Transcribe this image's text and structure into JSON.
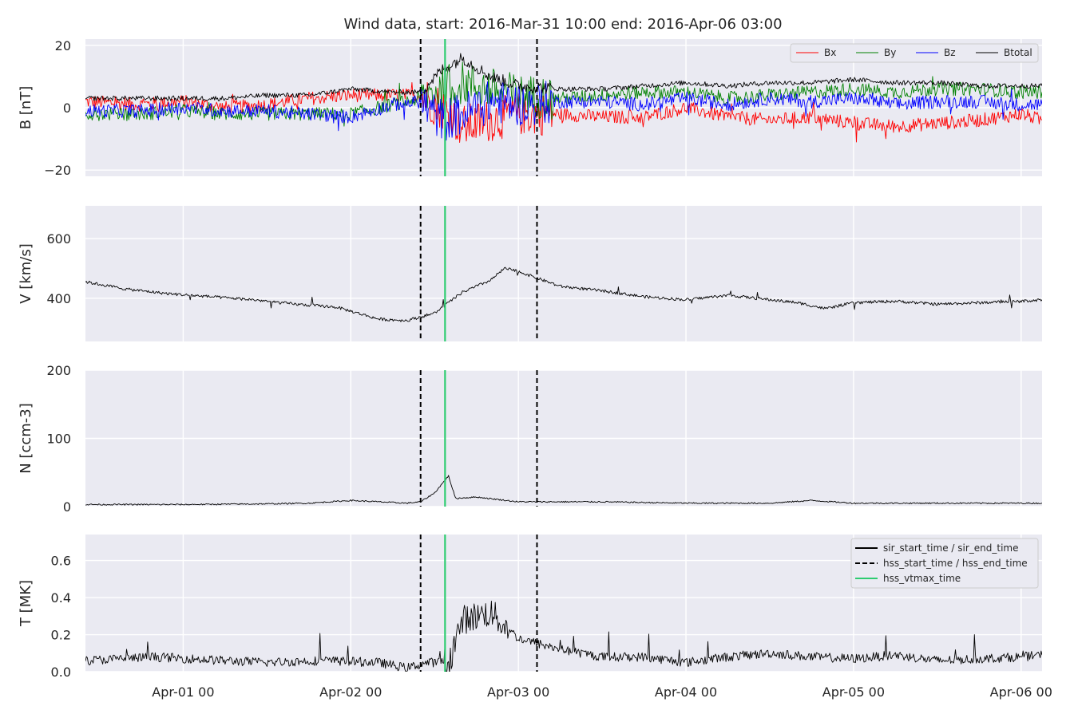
{
  "figure": {
    "title": "Wind data, start: 2016-Mar-31 10:00  end: 2016-Apr-06 03:00",
    "time_start": "2016-03-31 10:00",
    "time_end": "2016-04-06 03:00",
    "x_tick_labels": [
      "Apr-01 00",
      "Apr-02 00",
      "Apr-03 00",
      "Apr-04 00",
      "Apr-05 00",
      "Apr-06 00"
    ],
    "background_color": "#eaeaf2"
  },
  "event_markers": [
    {
      "name": "hss_start_time",
      "time": "2016-04-02 10:00",
      "style": "dashed",
      "color": "#000000"
    },
    {
      "name": "hss_vtmax_time",
      "time": "2016-04-02 13:30",
      "style": "solid",
      "color": "#2ecc71"
    },
    {
      "name": "hss_end_time",
      "time": "2016-04-03 02:40",
      "style": "dashed",
      "color": "#000000"
    }
  ],
  "legends": {
    "magnetic": [
      {
        "label": "Bx",
        "color": "#ff0000"
      },
      {
        "label": "By",
        "color": "#008000"
      },
      {
        "label": "Bz",
        "color": "#0000ff"
      },
      {
        "label": "Btotal",
        "color": "#000000"
      }
    ],
    "events": [
      {
        "label": "sir_start_time / sir_end_time",
        "style": "solid",
        "color": "#000000"
      },
      {
        "label": "hss_start_time / hss_end_time",
        "style": "dashed",
        "color": "#000000"
      },
      {
        "label": "hss_vtmax_time",
        "style": "solid",
        "color": "#2ecc71"
      }
    ]
  },
  "chart_data": [
    {
      "type": "line",
      "ylabel": "B [nT]",
      "ylim": [
        -22,
        22
      ],
      "yticks": [
        -20,
        0,
        20
      ],
      "ytick_labels": [
        "−20",
        "0",
        "20"
      ],
      "grid": true,
      "legend_placement": "top-right",
      "series": [
        {
          "name": "Bx",
          "color": "#ff0000",
          "times": [
            "2016-03-31 10:00",
            "2016-03-31 18:00",
            "2016-04-01 00:00",
            "2016-04-01 06:00",
            "2016-04-01 12:00",
            "2016-04-01 18:00",
            "2016-04-02 00:00",
            "2016-04-02 06:00",
            "2016-04-02 10:00",
            "2016-04-02 13:00",
            "2016-04-02 16:00",
            "2016-04-02 20:00",
            "2016-04-03 00:00",
            "2016-04-03 06:00",
            "2016-04-03 12:00",
            "2016-04-03 18:00",
            "2016-04-04 00:00",
            "2016-04-04 06:00",
            "2016-04-04 12:00",
            "2016-04-04 18:00",
            "2016-04-05 00:00",
            "2016-04-05 06:00",
            "2016-04-05 12:00",
            "2016-04-05 18:00",
            "2016-04-06 00:00",
            "2016-04-06 03:00"
          ],
          "values": [
            2,
            1,
            2,
            0,
            1,
            3,
            4,
            4,
            4,
            0,
            -6,
            -4,
            -2,
            -2,
            -3,
            -3,
            0,
            -3,
            -4,
            -3,
            -5,
            -6,
            -5,
            -4,
            -2,
            -4
          ]
        },
        {
          "name": "By",
          "color": "#008000",
          "times": [
            "2016-03-31 10:00",
            "2016-03-31 18:00",
            "2016-04-01 00:00",
            "2016-04-01 06:00",
            "2016-04-01 12:00",
            "2016-04-01 18:00",
            "2016-04-02 00:00",
            "2016-04-02 06:00",
            "2016-04-02 10:00",
            "2016-04-02 13:00",
            "2016-04-02 16:00",
            "2016-04-02 20:00",
            "2016-04-03 00:00",
            "2016-04-03 06:00",
            "2016-04-03 12:00",
            "2016-04-03 18:00",
            "2016-04-04 00:00",
            "2016-04-04 06:00",
            "2016-04-04 12:00",
            "2016-04-04 18:00",
            "2016-04-05 00:00",
            "2016-04-05 06:00",
            "2016-04-05 12:00",
            "2016-04-05 18:00",
            "2016-04-06 00:00",
            "2016-04-06 03:00"
          ],
          "values": [
            -2,
            -2,
            -1,
            -2,
            -2,
            -2,
            -2,
            1,
            3,
            6,
            8,
            6,
            4,
            3,
            4,
            5,
            5,
            3,
            4,
            5,
            6,
            5,
            6,
            6,
            5,
            5
          ]
        },
        {
          "name": "Bz",
          "color": "#0000ff",
          "times": [
            "2016-03-31 10:00",
            "2016-03-31 18:00",
            "2016-04-01 00:00",
            "2016-04-01 06:00",
            "2016-04-01 12:00",
            "2016-04-01 18:00",
            "2016-04-02 00:00",
            "2016-04-02 06:00",
            "2016-04-02 10:00",
            "2016-04-02 13:00",
            "2016-04-02 16:00",
            "2016-04-02 20:00",
            "2016-04-03 00:00",
            "2016-04-03 06:00",
            "2016-04-03 12:00",
            "2016-04-03 18:00",
            "2016-04-04 00:00",
            "2016-04-04 06:00",
            "2016-04-04 12:00",
            "2016-04-04 18:00",
            "2016-04-05 00:00",
            "2016-04-05 06:00",
            "2016-04-05 12:00",
            "2016-04-05 18:00",
            "2016-04-06 00:00",
            "2016-04-06 03:00"
          ],
          "values": [
            -1,
            -1,
            0,
            -1,
            -1,
            -2,
            -3,
            1,
            2,
            -4,
            -2,
            2,
            1,
            2,
            2,
            1,
            3,
            1,
            3,
            2,
            3,
            1,
            2,
            2,
            1,
            1
          ]
        },
        {
          "name": "Btotal",
          "color": "#000000",
          "times": [
            "2016-03-31 10:00",
            "2016-03-31 18:00",
            "2016-04-01 00:00",
            "2016-04-01 06:00",
            "2016-04-01 12:00",
            "2016-04-01 18:00",
            "2016-04-02 00:00",
            "2016-04-02 06:00",
            "2016-04-02 10:00",
            "2016-04-02 13:00",
            "2016-04-02 16:00",
            "2016-04-02 20:00",
            "2016-04-03 00:00",
            "2016-04-03 06:00",
            "2016-04-03 12:00",
            "2016-04-03 18:00",
            "2016-04-04 00:00",
            "2016-04-04 06:00",
            "2016-04-04 12:00",
            "2016-04-04 18:00",
            "2016-04-05 00:00",
            "2016-04-05 06:00",
            "2016-04-05 12:00",
            "2016-04-05 18:00",
            "2016-04-06 00:00",
            "2016-04-06 03:00"
          ],
          "values": [
            3,
            3,
            3,
            3,
            4,
            4,
            6,
            5,
            5,
            12,
            16,
            10,
            7,
            6,
            6,
            7,
            8,
            7,
            8,
            8,
            9,
            8,
            8,
            7,
            7,
            7
          ]
        }
      ]
    },
    {
      "type": "line",
      "ylabel": "V [km/s]",
      "ylim": [
        255,
        710
      ],
      "yticks": [
        400,
        600
      ],
      "ytick_labels": [
        "400",
        "600"
      ],
      "grid": true,
      "series": [
        {
          "name": "V",
          "color": "#000000",
          "times": [
            "2016-03-31 10:00",
            "2016-03-31 16:00",
            "2016-03-31 22:00",
            "2016-04-01 04:00",
            "2016-04-01 10:00",
            "2016-04-01 16:00",
            "2016-04-01 22:00",
            "2016-04-02 04:00",
            "2016-04-02 08:00",
            "2016-04-02 12:00",
            "2016-04-02 16:00",
            "2016-04-02 20:00",
            "2016-04-02 22:00",
            "2016-04-03 00:00",
            "2016-04-03 06:00",
            "2016-04-03 12:00",
            "2016-04-03 18:00",
            "2016-04-04 00:00",
            "2016-04-04 06:00",
            "2016-04-04 12:00",
            "2016-04-04 16:00",
            "2016-04-04 20:00",
            "2016-04-05 00:00",
            "2016-04-05 06:00",
            "2016-04-05 12:00",
            "2016-04-05 18:00",
            "2016-04-06 00:00",
            "2016-04-06 03:00"
          ],
          "values": [
            455,
            430,
            415,
            405,
            395,
            380,
            370,
            330,
            325,
            350,
            420,
            460,
            500,
            490,
            440,
            425,
            405,
            395,
            410,
            395,
            385,
            365,
            385,
            390,
            380,
            385,
            390,
            395
          ]
        }
      ]
    },
    {
      "type": "line",
      "ylabel": "N [ccm-3]",
      "ylim": [
        0,
        200
      ],
      "yticks": [
        0,
        100,
        200
      ],
      "ytick_labels": [
        "0",
        "100",
        "200"
      ],
      "grid": true,
      "series": [
        {
          "name": "N",
          "color": "#000000",
          "times": [
            "2016-03-31 10:00",
            "2016-04-01 00:00",
            "2016-04-01 12:00",
            "2016-04-01 18:00",
            "2016-04-02 00:00",
            "2016-04-02 08:00",
            "2016-04-02 10:00",
            "2016-04-02 12:00",
            "2016-04-02 14:00",
            "2016-04-02 15:00",
            "2016-04-02 18:00",
            "2016-04-03 00:00",
            "2016-04-03 12:00",
            "2016-04-04 00:00",
            "2016-04-04 12:00",
            "2016-04-04 18:00",
            "2016-04-05 00:00",
            "2016-04-05 12:00",
            "2016-04-06 00:00",
            "2016-04-06 03:00"
          ],
          "values": [
            3,
            3,
            4,
            5,
            9,
            5,
            7,
            20,
            45,
            12,
            14,
            7,
            7,
            5,
            5,
            9,
            5,
            5,
            5,
            5
          ]
        }
      ]
    },
    {
      "type": "line",
      "ylabel": "T [MK]",
      "ylim": [
        0,
        0.74
      ],
      "yticks": [
        0.0,
        0.2,
        0.4,
        0.6
      ],
      "ytick_labels": [
        "0.0",
        "0.2",
        "0.4",
        "0.6"
      ],
      "grid": true,
      "legend_placement": "top-right",
      "series": [
        {
          "name": "T",
          "color": "#000000",
          "times": [
            "2016-03-31 10:00",
            "2016-03-31 20:00",
            "2016-04-01 06:00",
            "2016-04-01 12:00",
            "2016-04-01 20:00",
            "2016-04-02 04:00",
            "2016-04-02 08:00",
            "2016-04-02 11:00",
            "2016-04-02 14:00",
            "2016-04-02 16:00",
            "2016-04-02 20:00",
            "2016-04-03 00:00",
            "2016-04-03 06:00",
            "2016-04-03 12:00",
            "2016-04-03 18:00",
            "2016-04-04 00:00",
            "2016-04-04 06:00",
            "2016-04-04 12:00",
            "2016-04-04 18:00",
            "2016-04-05 00:00",
            "2016-04-05 06:00",
            "2016-04-05 12:00",
            "2016-04-05 18:00",
            "2016-04-06 00:00",
            "2016-04-06 03:00"
          ],
          "values": [
            0.06,
            0.08,
            0.06,
            0.05,
            0.06,
            0.05,
            0.02,
            0.05,
            0.05,
            0.28,
            0.32,
            0.18,
            0.12,
            0.08,
            0.08,
            0.05,
            0.08,
            0.1,
            0.08,
            0.07,
            0.09,
            0.06,
            0.07,
            0.08,
            0.09
          ]
        }
      ]
    }
  ]
}
